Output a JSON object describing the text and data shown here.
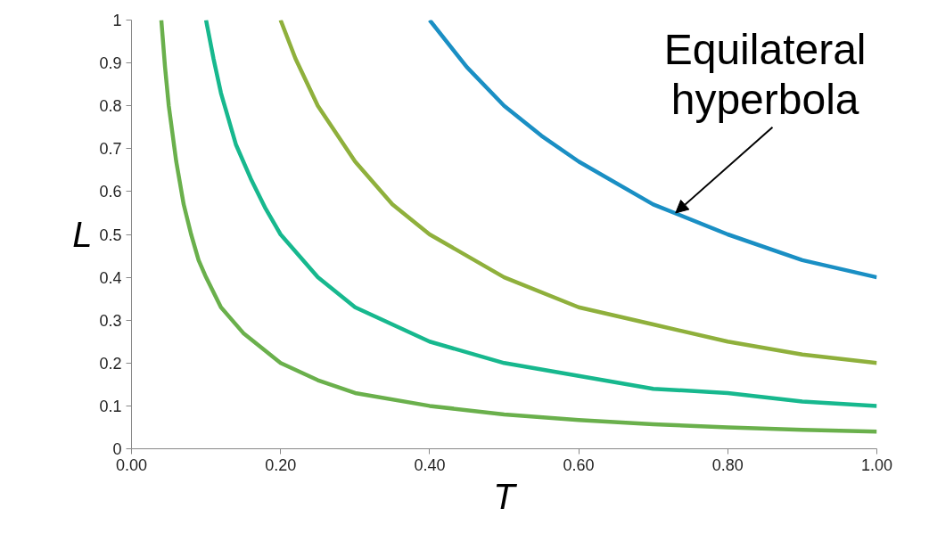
{
  "chart_data": {
    "type": "line",
    "xlabel": "T",
    "ylabel": "L",
    "xlim": [
      0,
      1
    ],
    "ylim": [
      0,
      1
    ],
    "xticks": [
      {
        "value": 0,
        "label": "0.00"
      },
      {
        "value": 0.2,
        "label": "0.20"
      },
      {
        "value": 0.4,
        "label": "0.40"
      },
      {
        "value": 0.6,
        "label": "0.60"
      },
      {
        "value": 0.8,
        "label": "0.80"
      },
      {
        "value": 1,
        "label": "1.00"
      }
    ],
    "yticks": [
      0,
      0.1,
      0.2,
      0.3,
      0.4,
      0.5,
      0.6,
      0.7,
      0.8,
      0.9,
      1
    ],
    "grid": false,
    "marker": "none",
    "line_style": "solid",
    "series": [
      {
        "color": "#6ab04c",
        "x": [
          0.04,
          0.045,
          0.05,
          0.06,
          0.07,
          0.08,
          0.09,
          0.1,
          0.12,
          0.15,
          0.2,
          0.25,
          0.3,
          0.4,
          0.5,
          0.6,
          0.7,
          0.8,
          0.9,
          1.0
        ],
        "values": [
          1,
          0.89,
          0.8,
          0.67,
          0.57,
          0.5,
          0.44,
          0.4,
          0.33,
          0.27,
          0.2,
          0.16,
          0.13,
          0.1,
          0.08,
          0.067,
          0.057,
          0.05,
          0.044,
          0.04
        ]
      },
      {
        "color": "#17b88e",
        "x": [
          0.1,
          0.11,
          0.12,
          0.14,
          0.16,
          0.18,
          0.2,
          0.25,
          0.3,
          0.4,
          0.5,
          0.6,
          0.7,
          0.8,
          0.9,
          1.0
        ],
        "values": [
          1,
          0.91,
          0.83,
          0.71,
          0.63,
          0.56,
          0.5,
          0.4,
          0.33,
          0.25,
          0.2,
          0.17,
          0.14,
          0.13,
          0.11,
          0.1
        ]
      },
      {
        "color": "#8fb03c",
        "x": [
          0.2,
          0.22,
          0.25,
          0.3,
          0.35,
          0.4,
          0.5,
          0.6,
          0.7,
          0.8,
          0.9,
          1.0
        ],
        "values": [
          1,
          0.91,
          0.8,
          0.67,
          0.57,
          0.5,
          0.4,
          0.33,
          0.29,
          0.25,
          0.22,
          0.2
        ]
      },
      {
        "color": "#1a8fc4",
        "x": [
          0.4,
          0.45,
          0.5,
          0.55,
          0.6,
          0.7,
          0.8,
          0.9,
          1.0
        ],
        "values": [
          1,
          0.89,
          0.8,
          0.73,
          0.67,
          0.57,
          0.5,
          0.44,
          0.4
        ]
      }
    ],
    "annotations": [
      {
        "text": "Equilateral hyperbola",
        "x": 0.73,
        "y": 0.55
      }
    ]
  }
}
